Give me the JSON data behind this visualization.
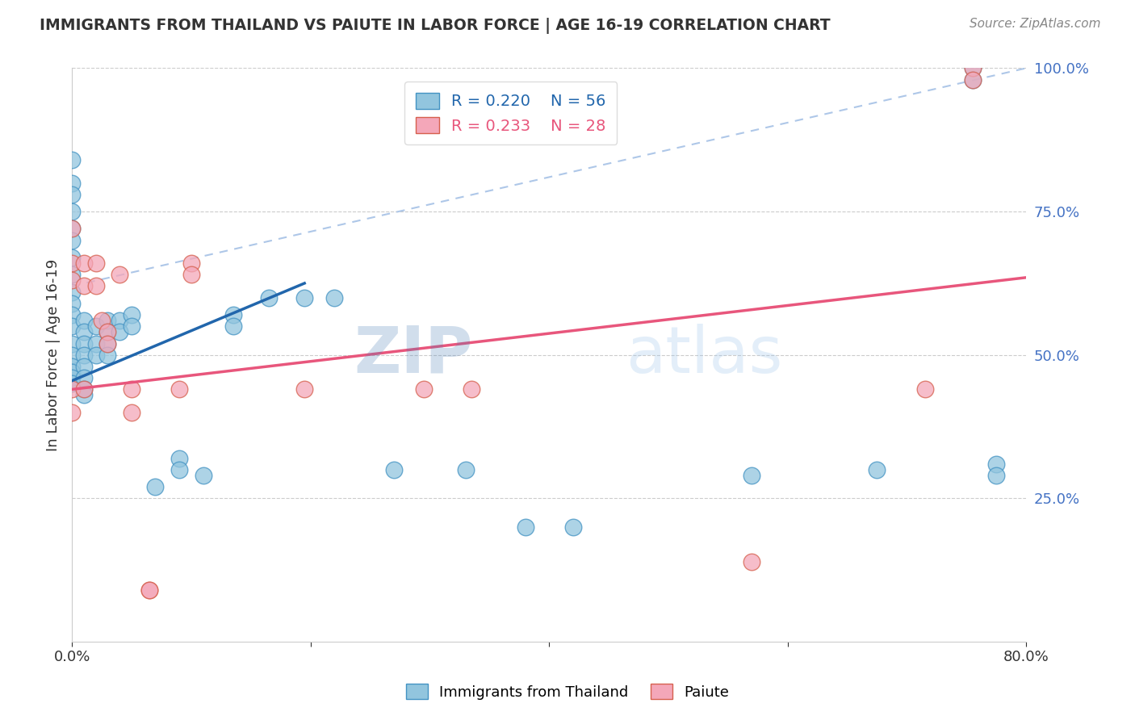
{
  "title": "IMMIGRANTS FROM THAILAND VS PAIUTE IN LABOR FORCE | AGE 16-19 CORRELATION CHART",
  "source": "Source: ZipAtlas.com",
  "ylabel": "In Labor Force | Age 16-19",
  "xlim": [
    0.0,
    0.8
  ],
  "ylim": [
    0.0,
    1.0
  ],
  "xticks": [
    0.0,
    0.2,
    0.4,
    0.6,
    0.8
  ],
  "xtick_labels": [
    "0.0%",
    "",
    "",
    "",
    "80.0%"
  ],
  "yticks_right": [
    0.25,
    0.5,
    0.75,
    1.0
  ],
  "ytick_labels_right": [
    "25.0%",
    "50.0%",
    "75.0%",
    "100.0%"
  ],
  "legend_blue_r": "R = 0.220",
  "legend_blue_n": "N = 56",
  "legend_pink_r": "R = 0.233",
  "legend_pink_n": "N = 28",
  "blue_scatter_color": "#92c5de",
  "blue_edge_color": "#4393c3",
  "pink_scatter_color": "#f4a7b9",
  "pink_edge_color": "#d6604d",
  "blue_line_color": "#2166ac",
  "pink_line_color": "#e8567c",
  "dash_line_color": "#aec7e8",
  "right_axis_color": "#4472c4",
  "watermark": "ZIPatlas",
  "blue_line": [
    [
      0.0,
      0.455
    ],
    [
      0.195,
      0.625
    ]
  ],
  "pink_line": [
    [
      0.0,
      0.44
    ],
    [
      0.8,
      0.635
    ]
  ],
  "dash_line": [
    [
      0.0,
      0.62
    ],
    [
      0.8,
      1.0
    ]
  ],
  "blue_points_x": [
    0.0,
    0.0,
    0.0,
    0.0,
    0.0,
    0.0,
    0.0,
    0.0,
    0.0,
    0.0,
    0.0,
    0.0,
    0.0,
    0.0,
    0.0,
    0.0,
    0.0,
    0.0,
    0.01,
    0.01,
    0.01,
    0.01,
    0.01,
    0.01,
    0.01,
    0.01,
    0.02,
    0.02,
    0.02,
    0.03,
    0.03,
    0.03,
    0.03,
    0.04,
    0.04,
    0.05,
    0.05,
    0.07,
    0.09,
    0.09,
    0.11,
    0.135,
    0.135,
    0.165,
    0.195,
    0.22,
    0.27,
    0.33,
    0.38,
    0.42,
    0.57,
    0.675,
    0.755,
    0.755,
    0.775,
    0.775
  ],
  "blue_points_y": [
    0.84,
    0.8,
    0.78,
    0.75,
    0.72,
    0.7,
    0.67,
    0.64,
    0.61,
    0.59,
    0.57,
    0.55,
    0.52,
    0.5,
    0.48,
    0.47,
    0.46,
    0.45,
    0.56,
    0.54,
    0.52,
    0.5,
    0.48,
    0.46,
    0.44,
    0.43,
    0.55,
    0.52,
    0.5,
    0.56,
    0.54,
    0.52,
    0.5,
    0.56,
    0.54,
    0.57,
    0.55,
    0.27,
    0.32,
    0.3,
    0.29,
    0.57,
    0.55,
    0.6,
    0.6,
    0.6,
    0.3,
    0.3,
    0.2,
    0.2,
    0.29,
    0.3,
    1.0,
    0.98,
    0.31,
    0.29
  ],
  "pink_points_x": [
    0.0,
    0.0,
    0.0,
    0.0,
    0.0,
    0.01,
    0.01,
    0.01,
    0.02,
    0.02,
    0.025,
    0.03,
    0.03,
    0.04,
    0.05,
    0.05,
    0.065,
    0.065,
    0.09,
    0.1,
    0.1,
    0.195,
    0.295,
    0.335,
    0.57,
    0.715,
    0.755,
    0.755
  ],
  "pink_points_y": [
    0.72,
    0.66,
    0.63,
    0.44,
    0.4,
    0.66,
    0.62,
    0.44,
    0.66,
    0.62,
    0.56,
    0.54,
    0.52,
    0.64,
    0.44,
    0.4,
    0.09,
    0.09,
    0.44,
    0.66,
    0.64,
    0.44,
    0.44,
    0.44,
    0.14,
    0.44,
    1.0,
    0.98
  ]
}
